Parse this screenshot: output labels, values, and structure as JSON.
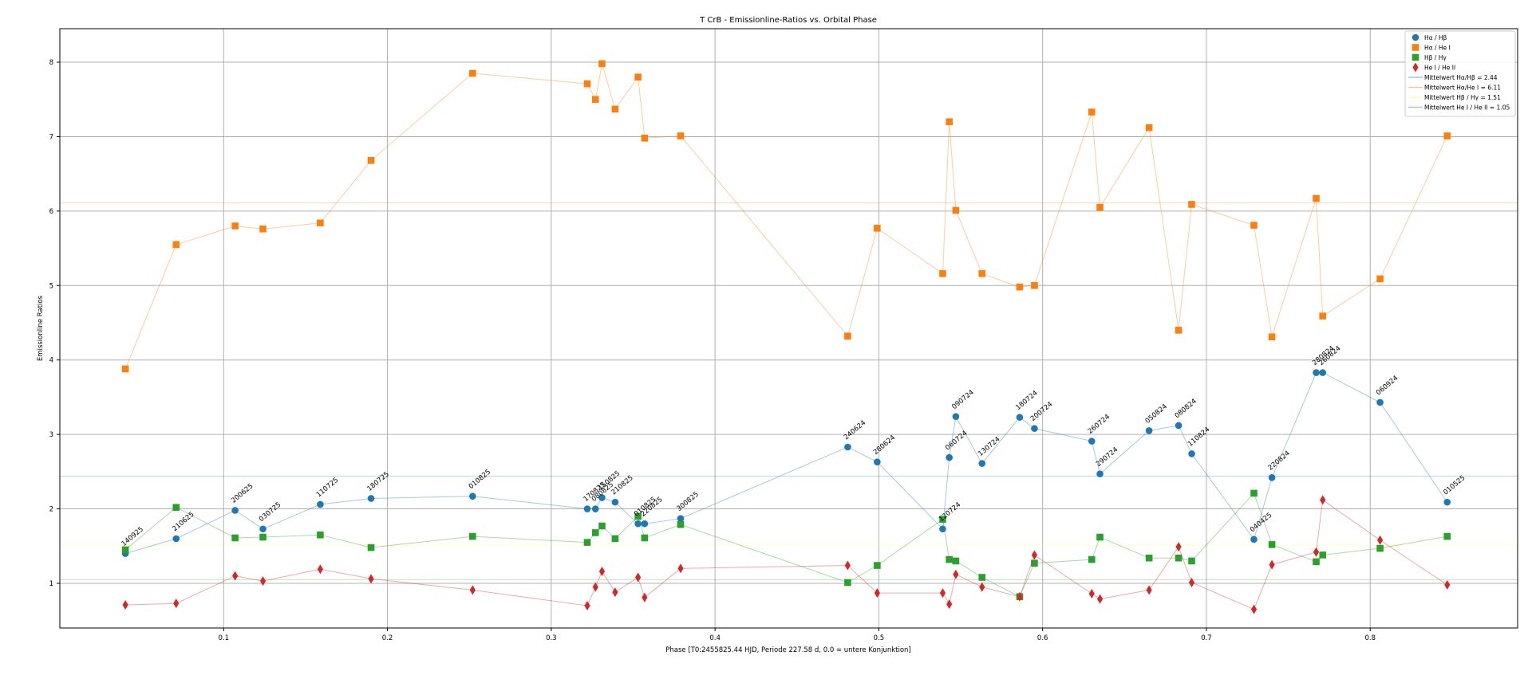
{
  "chart_data": {
    "type": "scatter",
    "title": "T CrB - Emissionline-Ratios vs. Orbital Phase",
    "xlabel": "Phase [T0:2455825.44 HJD, Periode 227.58 d, 0.0 = untere Konjunktion]",
    "ylabel": "Emissionline Ratios",
    "xlim": [
      0.0,
      0.89
    ],
    "ylim": [
      0.4,
      8.45
    ],
    "xticks": [
      0.1,
      0.2,
      0.3,
      0.4,
      0.5,
      0.6,
      0.7,
      0.8
    ],
    "yticks": [
      1,
      2,
      3,
      4,
      5,
      6,
      7,
      8
    ],
    "grid": true,
    "legend_position": "top-right",
    "points_x": [
      0.04,
      0.071,
      0.107,
      0.124,
      0.159,
      0.19,
      0.252,
      0.322,
      0.327,
      0.331,
      0.339,
      0.353,
      0.357,
      0.379,
      0.481,
      0.499,
      0.539,
      0.543,
      0.547,
      0.563,
      0.586,
      0.595,
      0.63,
      0.635,
      0.665,
      0.683,
      0.691,
      0.729,
      0.74,
      0.767,
      0.771,
      0.806,
      0.847
    ],
    "point_labels": [
      "140925",
      "210625",
      "200625",
      "030725",
      "110725",
      "180725",
      "010825",
      "170825",
      "080825",
      "150825",
      "210825",
      "010825",
      "220825",
      "300825",
      "240624",
      "280624",
      "120724",
      "060724",
      "090724",
      "130724",
      "180724",
      "200724",
      "260724",
      "290724",
      "050824",
      "080824",
      "110824",
      "040425",
      "220824",
      "280824",
      "260824",
      "060924",
      "010525"
    ],
    "label_series": 0,
    "series": [
      {
        "name": "Hα / Hβ",
        "marker": "circle",
        "color": "#1f77b4",
        "y": [
          1.4,
          1.6,
          1.98,
          1.73,
          2.06,
          2.14,
          2.17,
          2.0,
          2.0,
          2.15,
          2.09,
          1.8,
          1.8,
          1.87,
          2.83,
          2.63,
          1.73,
          2.69,
          3.24,
          2.61,
          3.23,
          3.08,
          2.91,
          2.47,
          3.05,
          3.12,
          2.74,
          1.59,
          2.42,
          3.83,
          3.83,
          3.43,
          2.09
        ]
      },
      {
        "name": "Hα / He I",
        "marker": "square",
        "color": "#ff7f0e",
        "y": [
          3.88,
          5.55,
          5.8,
          5.76,
          5.84,
          6.68,
          7.85,
          7.71,
          7.5,
          7.98,
          7.37,
          7.8,
          6.98,
          7.01,
          4.32,
          5.77,
          5.16,
          7.2,
          6.01,
          5.16,
          4.98,
          5.0,
          7.33,
          6.05,
          7.12,
          4.4,
          6.09,
          5.81,
          4.31,
          6.17,
          4.59,
          5.09,
          7.01
        ]
      },
      {
        "name": "Hβ / Hγ",
        "marker": "square",
        "color": "#2ca02c",
        "y": [
          1.45,
          2.02,
          1.61,
          1.62,
          1.65,
          1.48,
          1.63,
          1.55,
          1.68,
          1.77,
          1.6,
          1.9,
          1.61,
          1.79,
          1.01,
          1.24,
          1.86,
          1.32,
          1.3,
          1.08,
          0.82,
          1.27,
          1.32,
          1.62,
          1.34,
          1.34,
          1.3,
          2.21,
          1.52,
          1.29,
          1.38,
          1.47,
          1.63
        ]
      },
      {
        "name": "He I / He II",
        "marker": "diamond",
        "color": "#d62728",
        "y": [
          0.71,
          0.73,
          1.1,
          1.03,
          1.19,
          1.06,
          0.91,
          0.7,
          0.95,
          1.16,
          0.88,
          1.08,
          0.81,
          1.2,
          1.24,
          0.87,
          0.87,
          0.72,
          1.12,
          0.95,
          0.82,
          1.38,
          0.86,
          0.79,
          0.91,
          1.49,
          1.01,
          0.65,
          1.25,
          1.42,
          2.12,
          1.58,
          0.98
        ]
      }
    ],
    "mean_lines": [
      {
        "name": "Mittelwert Hα/Hβ = 2.44",
        "value": 2.44,
        "color": "#1f77b4"
      },
      {
        "name": "Mittelwert Hα/He I = 6.11",
        "value": 6.11,
        "color": "#ff7f0e"
      },
      {
        "name": "Mittelwert Hβ / Hγ = 1.51",
        "value": 1.51,
        "color": "#ffff33"
      },
      {
        "name": "Mittelwert He I / He II = 1.05",
        "value": 1.05,
        "color": "#2ca02c"
      }
    ]
  }
}
